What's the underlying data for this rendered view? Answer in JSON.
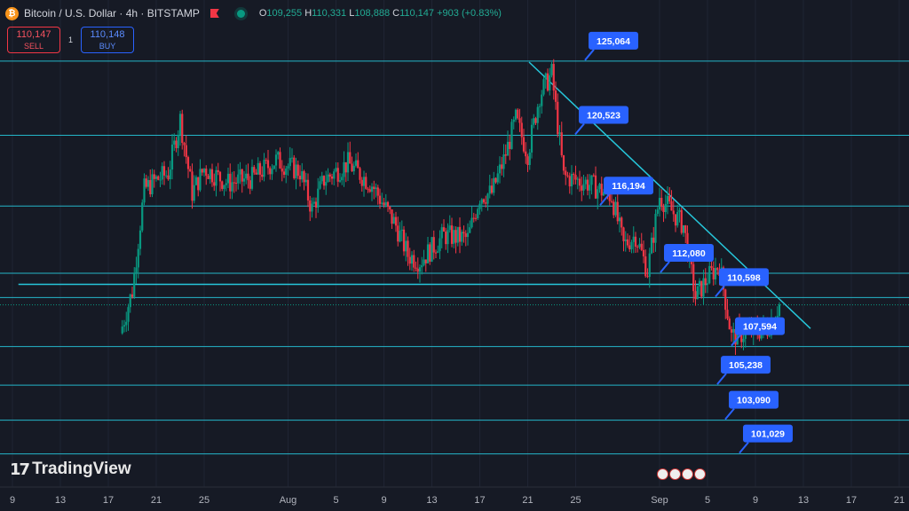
{
  "header": {
    "symbol": "Bitcoin / U.S. Dollar · 4h · BITSTAMP",
    "coin_icon": "bitcoin-icon",
    "ohlc": {
      "o_label": "O",
      "o": "109,255",
      "h_label": "H",
      "h": "110,331",
      "l_label": "L",
      "l": "108,888",
      "c_label": "C",
      "c": "110,147",
      "change": "+903 (+0.83%)"
    }
  },
  "trade": {
    "sell_price": "110,147",
    "sell_label": "SELL",
    "buy_price": "110,148",
    "buy_label": "BUY",
    "spread": "1"
  },
  "logo": {
    "text": "TradingView",
    "mark": "17"
  },
  "colors": {
    "background": "#161a25",
    "up": "#089981",
    "down": "#f23645",
    "level_line": "#26c6da",
    "callout": "#2962ff"
  },
  "chart_data": {
    "type": "candlestick",
    "title": "",
    "xlabel": "",
    "ylabel": "",
    "ylim": [
      99000,
      128800
    ],
    "grid": true,
    "x_ticks": [
      "9",
      "13",
      "17",
      "21",
      "25",
      "Aug",
      "5",
      "9",
      "13",
      "17",
      "21",
      "25",
      "Sep",
      "5",
      "9",
      "13",
      "17",
      "21"
    ],
    "price_levels": [
      "125,064",
      "120,523",
      "116,194",
      "112,080",
      "110,598",
      "107,594",
      "105,238",
      "103,090",
      "101,029"
    ],
    "level_values": [
      125064,
      120523,
      116194,
      112080,
      110598,
      107594,
      105238,
      103090,
      101029
    ],
    "support_line": 111400,
    "trendline": {
      "start_date": "Aug 13",
      "start_price": 125000,
      "end_date": "Sep 4",
      "end_price": 108700
    },
    "price_path": [
      {
        "date": "Jul 9",
        "price": 108400
      },
      {
        "date": "Jul 10",
        "price": 111000
      },
      {
        "date": "Jul 11",
        "price": 117200
      },
      {
        "date": "Jul 12",
        "price": 117800
      },
      {
        "date": "Jul 13",
        "price": 118200
      },
      {
        "date": "Jul 14",
        "price": 121500
      },
      {
        "date": "Jul 15",
        "price": 117000
      },
      {
        "date": "Jul 16",
        "price": 118500
      },
      {
        "date": "Jul 18",
        "price": 117600
      },
      {
        "date": "Jul 20",
        "price": 117900
      },
      {
        "date": "Jul 22",
        "price": 119000
      },
      {
        "date": "Jul 24",
        "price": 118300
      },
      {
        "date": "Jul 25",
        "price": 116000
      },
      {
        "date": "Jul 26",
        "price": 117800
      },
      {
        "date": "Jul 28",
        "price": 118800
      },
      {
        "date": "Jul 30",
        "price": 117500
      },
      {
        "date": "Aug 1",
        "price": 115000
      },
      {
        "date": "Aug 2",
        "price": 113200
      },
      {
        "date": "Aug 3",
        "price": 112800
      },
      {
        "date": "Aug 5",
        "price": 114400
      },
      {
        "date": "Aug 7",
        "price": 114200
      },
      {
        "date": "Aug 8",
        "price": 116800
      },
      {
        "date": "Aug 9",
        "price": 117000
      },
      {
        "date": "Aug 10",
        "price": 119000
      },
      {
        "date": "Aug 11",
        "price": 121500
      },
      {
        "date": "Aug 12",
        "price": 119400
      },
      {
        "date": "Aug 13",
        "price": 123000
      },
      {
        "date": "Aug 14",
        "price": 124300
      },
      {
        "date": "Aug 15",
        "price": 118000
      },
      {
        "date": "Aug 17",
        "price": 117600
      },
      {
        "date": "Aug 19",
        "price": 116800
      },
      {
        "date": "Aug 20",
        "price": 113800
      },
      {
        "date": "Aug 21",
        "price": 114400
      },
      {
        "date": "Aug 22",
        "price": 112200
      },
      {
        "date": "Aug 23",
        "price": 116800
      },
      {
        "date": "Aug 25",
        "price": 115000
      },
      {
        "date": "Aug 26",
        "price": 110600
      },
      {
        "date": "Aug 27",
        "price": 111800
      },
      {
        "date": "Aug 28",
        "price": 112600
      },
      {
        "date": "Aug 29",
        "price": 108200
      },
      {
        "date": "Aug 30",
        "price": 108400
      },
      {
        "date": "Sep 1",
        "price": 108700
      },
      {
        "date": "Sep 2",
        "price": 110147
      }
    ]
  }
}
